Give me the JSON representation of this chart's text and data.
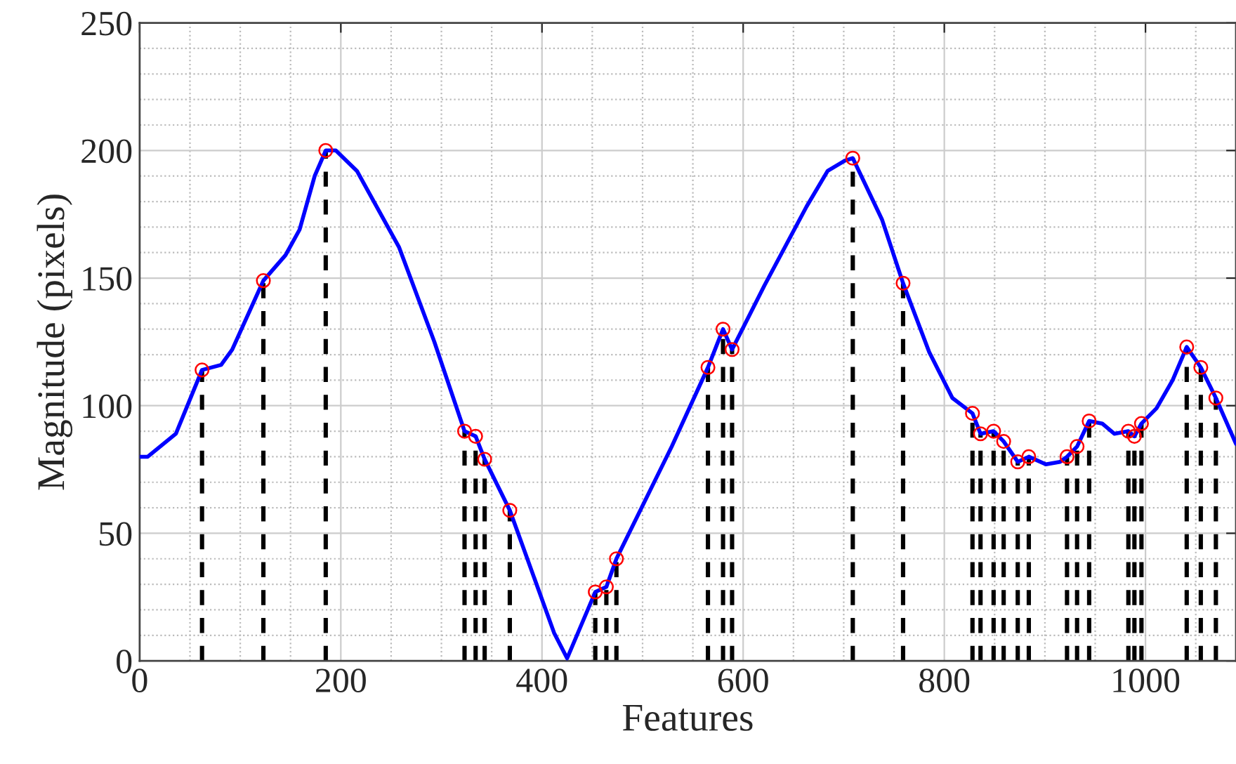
{
  "chart_data": {
    "type": "line",
    "xlabel": "Features",
    "ylabel": "Magnitude (pixels)",
    "xlim": [
      0,
      1090
    ],
    "ylim": [
      0,
      250
    ],
    "xticks": [
      0,
      {
        "value": 50,
        "label": null
      },
      {
        "value": 100,
        "label": null
      },
      {
        "value": 150,
        "label": null
      },
      200,
      {
        "value": 250,
        "label": null
      },
      {
        "value": 300,
        "label": null
      },
      {
        "value": 350,
        "label": null
      },
      400,
      {
        "value": 450,
        "label": null
      },
      {
        "value": 500,
        "label": null
      },
      {
        "value": 550,
        "label": null
      },
      600,
      {
        "value": 650,
        "label": null
      },
      {
        "value": 700,
        "label": null
      },
      {
        "value": 750,
        "label": null
      },
      800,
      {
        "value": 850,
        "label": null
      },
      {
        "value": 900,
        "label": null
      },
      {
        "value": 950,
        "label": null
      },
      1000,
      {
        "value": 1050,
        "label": null
      }
    ],
    "yticks": [
      0,
      {
        "value": 10,
        "label": null
      },
      {
        "value": 20,
        "label": null
      },
      {
        "value": 30,
        "label": null
      },
      {
        "value": 40,
        "label": null
      },
      50,
      {
        "value": 60,
        "label": null
      },
      {
        "value": 70,
        "label": null
      },
      {
        "value": 80,
        "label": null
      },
      {
        "value": 90,
        "label": null
      },
      100,
      {
        "value": 110,
        "label": null
      },
      {
        "value": 120,
        "label": null
      },
      {
        "value": 130,
        "label": null
      },
      {
        "value": 140,
        "label": null
      },
      150,
      {
        "value": 160,
        "label": null
      },
      {
        "value": 170,
        "label": null
      },
      {
        "value": 180,
        "label": null
      },
      {
        "value": 190,
        "label": null
      },
      200,
      {
        "value": 210,
        "label": null
      },
      {
        "value": 220,
        "label": null
      },
      {
        "value": 230,
        "label": null
      },
      {
        "value": 240,
        "label": null
      },
      250
    ],
    "grid": true,
    "legend": false,
    "series": [
      {
        "color": "#0000ff",
        "marker": "none",
        "line_style": "solid",
        "x": [
          0,
          8,
          36,
          62,
          81,
          92,
          123,
          145,
          159,
          174,
          185,
          195,
          216,
          258,
          293,
          323,
          334,
          343,
          368,
          412,
          425,
          453,
          464,
          474,
          529,
          565,
          580,
          589,
          621,
          663,
          684,
          701,
          709,
          738,
          759,
          785,
          808,
          828,
          836,
          849,
          859,
          873,
          884,
          901,
          915,
          922,
          932,
          944,
          957,
          969,
          983,
          989,
          996,
          1011,
          1027,
          1041,
          1055,
          1070,
          1090
        ],
        "values": [
          80,
          80,
          89,
          114,
          116,
          122,
          149,
          159,
          169,
          190,
          200,
          200,
          192,
          162,
          125,
          90,
          88,
          79,
          59,
          11,
          1,
          27,
          29,
          40,
          84,
          115,
          130,
          122,
          147,
          178,
          192,
          196,
          197,
          173,
          148,
          121,
          103,
          97,
          89,
          90,
          86,
          78,
          80,
          77,
          78,
          80,
          84,
          94,
          93,
          89,
          90,
          88,
          93,
          99,
          110,
          123,
          115,
          103,
          85
        ]
      },
      {
        "type": "lollipop",
        "color": "#ff0000",
        "marker": "circle",
        "line_style": "dashed",
        "x": [
          62,
          123,
          185,
          323,
          334,
          343,
          368,
          453,
          464,
          474,
          565,
          580,
          589,
          709,
          759,
          828,
          836,
          849,
          859,
          873,
          884,
          922,
          932,
          944,
          983,
          989,
          996,
          1041,
          1055,
          1070
        ],
        "values": [
          114,
          149,
          200,
          90,
          88,
          79,
          59,
          27,
          29,
          40,
          115,
          130,
          122,
          197,
          148,
          97,
          89,
          90,
          86,
          78,
          80,
          80,
          84,
          94,
          90,
          88,
          93,
          123,
          115,
          103
        ]
      }
    ]
  }
}
